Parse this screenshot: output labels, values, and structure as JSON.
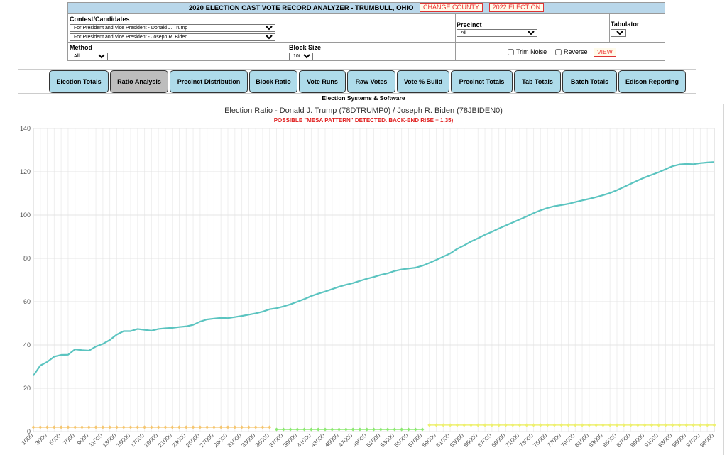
{
  "header": {
    "title": "2020 ELECTION CAST VOTE RECORD ANALYZER - TRUMBULL, OHIO",
    "change_county_label": "CHANGE COUNTY",
    "election_2022_label": "2022 ELECTION"
  },
  "form": {
    "contest_label": "Contest/Candidates",
    "candidate1": "For President and Vice President - Donald J. Trump",
    "candidate2": "For President and Vice President - Joseph R. Biden",
    "precinct_label": "Precinct",
    "precinct_value": "All",
    "tabulator_label": "Tabulator",
    "tabulator_value": "All",
    "method_label": "Method",
    "method_value": "All",
    "blocksize_label": "Block Size",
    "blocksize_value": "1000",
    "trim_noise_label": "Trim Noise",
    "reverse_label": "Reverse",
    "view_label": "VIEW"
  },
  "tabs": [
    {
      "label": "Election Totals",
      "active": false
    },
    {
      "label": "Ratio Analysis",
      "active": true
    },
    {
      "label": "Precinct Distribution",
      "active": false
    },
    {
      "label": "Block Ratio",
      "active": false
    },
    {
      "label": "Vote Runs",
      "active": false
    },
    {
      "label": "Raw Votes",
      "active": false
    },
    {
      "label": "Vote % Build",
      "active": false
    },
    {
      "label": "Precinct Totals",
      "active": false
    },
    {
      "label": "Tab Totals",
      "active": false
    },
    {
      "label": "Batch Totals",
      "active": false
    },
    {
      "label": "Edison Reporting",
      "active": false
    }
  ],
  "subtitle": "Election Systems & Software",
  "chart_data": {
    "type": "line",
    "title": "Election Ratio - Donald J. Trump (78DTRUMP0) / Joseph R. Biden (78JBIDEN0)",
    "subtitle": "POSSIBLE \"MESA PATTERN\" DETECTED. BACK-END RISE = 1.35)",
    "ylim": [
      0,
      140
    ],
    "yticks": [
      0,
      20,
      40,
      60,
      80,
      100,
      120,
      140
    ],
    "x": [
      1000,
      2000,
      3000,
      4000,
      5000,
      6000,
      7000,
      8000,
      9000,
      10000,
      11000,
      12000,
      13000,
      14000,
      15000,
      16000,
      17000,
      18000,
      19000,
      20000,
      21000,
      22000,
      23000,
      24000,
      25000,
      26000,
      27000,
      28000,
      29000,
      30000,
      31000,
      32000,
      33000,
      34000,
      35000,
      36000,
      37000,
      38000,
      39000,
      40000,
      41000,
      42000,
      43000,
      44000,
      45000,
      46000,
      47000,
      48000,
      49000,
      50000,
      51000,
      52000,
      53000,
      54000,
      55000,
      56000,
      57000,
      58000,
      59000,
      60000,
      61000,
      62000,
      63000,
      64000,
      65000,
      66000,
      67000,
      68000,
      69000,
      70000,
      71000,
      72000,
      73000,
      74000,
      75000,
      76000,
      77000,
      78000,
      79000,
      80000,
      81000,
      82000,
      83000,
      84000,
      85000,
      86000,
      87000,
      88000,
      89000,
      90000,
      91000,
      92000,
      93000,
      94000,
      95000,
      96000,
      97000,
      98000,
      99000
    ],
    "xtick_labels": [
      "1000",
      "3000",
      "5000",
      "7000",
      "9000",
      "11000",
      "13000",
      "15000",
      "17000",
      "19000",
      "21000",
      "23000",
      "25000",
      "27000",
      "29000",
      "31000",
      "33000",
      "35000",
      "37000",
      "39000",
      "41000",
      "43000",
      "45000",
      "47000",
      "49000",
      "51000",
      "53000",
      "55000",
      "57000",
      "59000",
      "61000",
      "63000",
      "65000",
      "67000",
      "69000",
      "71000",
      "73000",
      "75000",
      "77000",
      "79000",
      "81000",
      "83000",
      "85000",
      "87000",
      "89000",
      "91000",
      "93000",
      "95000",
      "97000",
      "99000"
    ],
    "series": [
      {
        "color": "#5bc4c0",
        "values": [
          25.8,
          30.5,
          32.2,
          34.6,
          35.4,
          35.5,
          38.0,
          37.6,
          37.4,
          39.3,
          40.5,
          42.3,
          44.8,
          46.4,
          46.4,
          47.4,
          47.0,
          46.6,
          47.4,
          47.7,
          47.9,
          48.3,
          48.6,
          49.3,
          50.8,
          51.8,
          52.2,
          52.5,
          52.4,
          52.9,
          53.4,
          54.0,
          54.6,
          55.4,
          56.5,
          57.0,
          57.8,
          58.8,
          60.0,
          61.2,
          62.6,
          63.7,
          64.7,
          65.8,
          66.9,
          67.8,
          68.6,
          69.6,
          70.6,
          71.4,
          72.4,
          73.1,
          74.2,
          74.9,
          75.3,
          75.7,
          76.6,
          77.9,
          79.3,
          80.8,
          82.3,
          84.4,
          86.0,
          87.8,
          89.3,
          90.9,
          92.3,
          93.8,
          95.2,
          96.6,
          98.0,
          99.4,
          100.9,
          102.2,
          103.3,
          104.1,
          104.6,
          105.2,
          106.0,
          106.8,
          107.5,
          108.3,
          109.2,
          110.2,
          111.5,
          113.0,
          114.5,
          116.0,
          117.4,
          118.6,
          119.8,
          121.2,
          122.6,
          123.4,
          123.6,
          123.5,
          124.0,
          124.3,
          124.5
        ]
      },
      {
        "color": "#f5c670",
        "segment": [
          1000,
          35000
        ],
        "value": 2
      },
      {
        "color": "#8be870",
        "segment": [
          36000,
          57000
        ],
        "value": 1
      },
      {
        "color": "#eef070",
        "segment": [
          58000,
          99000
        ],
        "value": 3
      }
    ],
    "grid": true
  }
}
